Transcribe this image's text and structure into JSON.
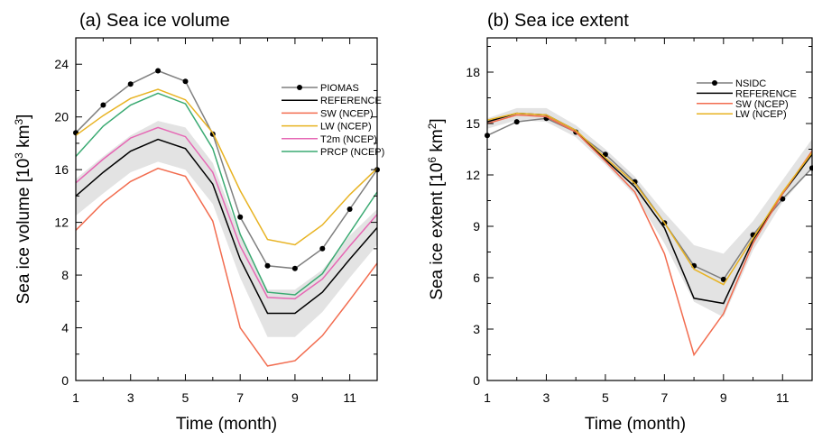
{
  "chart_data": [
    {
      "type": "line",
      "title": "(a) Sea ice volume",
      "xlabel": "Time (month)",
      "ylabel": {
        "text": "Sea ice volume [10",
        "sup1": "3",
        "mid": " km",
        "sup2": "3",
        "end": "]"
      },
      "x": [
        1,
        2,
        3,
        4,
        5,
        6,
        7,
        8,
        9,
        10,
        11,
        12
      ],
      "xlim": [
        1,
        12
      ],
      "ylim": [
        0,
        26
      ],
      "xticks": [
        1,
        3,
        5,
        7,
        9,
        11
      ],
      "yticks": [
        0,
        4,
        8,
        12,
        16,
        20,
        24
      ],
      "legend_position": "top-right",
      "band": {
        "lower": [
          12.5,
          14.2,
          15.8,
          16.6,
          16.0,
          13.4,
          7.8,
          3.3,
          3.3,
          5.2,
          7.8,
          10.3
        ],
        "upper": [
          15.3,
          17.0,
          18.6,
          19.7,
          19.2,
          16.5,
          11.0,
          6.9,
          6.9,
          8.4,
          11.0,
          13.0
        ],
        "color": "#e3e3e3"
      },
      "series": [
        {
          "name": "PIOMAS",
          "color": "#7f7f7f",
          "markers": true,
          "values": [
            18.8,
            20.9,
            22.5,
            23.5,
            22.7,
            18.7,
            12.4,
            8.7,
            8.5,
            10.0,
            13.0,
            16.0
          ]
        },
        {
          "name": "REFERENCE",
          "color": "#000000",
          "markers": false,
          "values": [
            14.0,
            15.8,
            17.4,
            18.3,
            17.6,
            14.9,
            9.2,
            5.1,
            5.1,
            6.7,
            9.2,
            11.6
          ]
        },
        {
          "name": "SW (NCEP)",
          "color": "#f26c4f",
          "markers": false,
          "values": [
            11.4,
            13.5,
            15.1,
            16.1,
            15.5,
            12.1,
            4.0,
            1.1,
            1.5,
            3.4,
            6.1,
            8.9
          ]
        },
        {
          "name": "LW (NCEP)",
          "color": "#e8b322",
          "markers": false,
          "values": [
            18.6,
            20.1,
            21.4,
            22.1,
            21.3,
            18.8,
            14.4,
            10.7,
            10.3,
            11.8,
            14.1,
            16.1
          ]
        },
        {
          "name": "T2m (NCEP)",
          "color": "#e667b4",
          "markers": false,
          "values": [
            15.0,
            16.8,
            18.4,
            19.2,
            18.5,
            15.8,
            10.2,
            6.3,
            6.2,
            7.7,
            10.2,
            12.6
          ]
        },
        {
          "name": "PRCP (NCEP)",
          "color": "#3aaa72",
          "markers": false,
          "values": [
            17.0,
            19.3,
            20.9,
            21.8,
            21.0,
            17.6,
            11.1,
            6.7,
            6.5,
            8.1,
            11.2,
            14.3
          ]
        }
      ]
    },
    {
      "type": "line",
      "title": "(b) Sea ice extent",
      "xlabel": "Time (month)",
      "ylabel": {
        "text": "Sea ice extent [10",
        "sup1": "6",
        "mid": " km",
        "sup2": "2",
        "end": "]"
      },
      "x": [
        1,
        2,
        3,
        4,
        5,
        6,
        7,
        8,
        9,
        10,
        11,
        12
      ],
      "xlim": [
        1,
        12
      ],
      "ylim": [
        0,
        20
      ],
      "xticks": [
        1,
        3,
        5,
        7,
        9,
        11
      ],
      "yticks": [
        0,
        3,
        6,
        9,
        12,
        15,
        18
      ],
      "legend_position": "top-right",
      "band": {
        "lower": [
          14.7,
          15.2,
          15.1,
          14.2,
          12.6,
          10.8,
          8.0,
          4.6,
          3.7,
          7.6,
          10.4,
          12.4
        ],
        "upper": [
          15.3,
          15.9,
          15.9,
          14.9,
          13.5,
          11.9,
          9.8,
          7.9,
          7.4,
          9.3,
          11.7,
          14.1
        ],
        "color": "#e3e3e3"
      },
      "series": [
        {
          "name": "NSIDC",
          "color": "#7f7f7f",
          "markers": true,
          "values": [
            14.3,
            15.1,
            15.3,
            14.5,
            13.2,
            11.6,
            9.2,
            6.7,
            5.9,
            8.5,
            10.6,
            12.4
          ]
        },
        {
          "name": "REFERENCE",
          "color": "#000000",
          "markers": false,
          "values": [
            15.1,
            15.6,
            15.5,
            14.6,
            12.9,
            11.3,
            8.9,
            4.8,
            4.5,
            8.2,
            10.9,
            13.2
          ]
        },
        {
          "name": "SW (NCEP)",
          "color": "#f26c4f",
          "markers": false,
          "values": [
            15.0,
            15.5,
            15.4,
            14.5,
            12.8,
            11.0,
            7.4,
            1.5,
            3.9,
            8.0,
            10.9,
            13.4
          ]
        },
        {
          "name": "LW (NCEP)",
          "color": "#e8b322",
          "markers": false,
          "values": [
            15.2,
            15.6,
            15.5,
            14.6,
            13.0,
            11.5,
            9.2,
            6.5,
            5.6,
            8.3,
            11.0,
            13.3
          ]
        }
      ]
    }
  ]
}
